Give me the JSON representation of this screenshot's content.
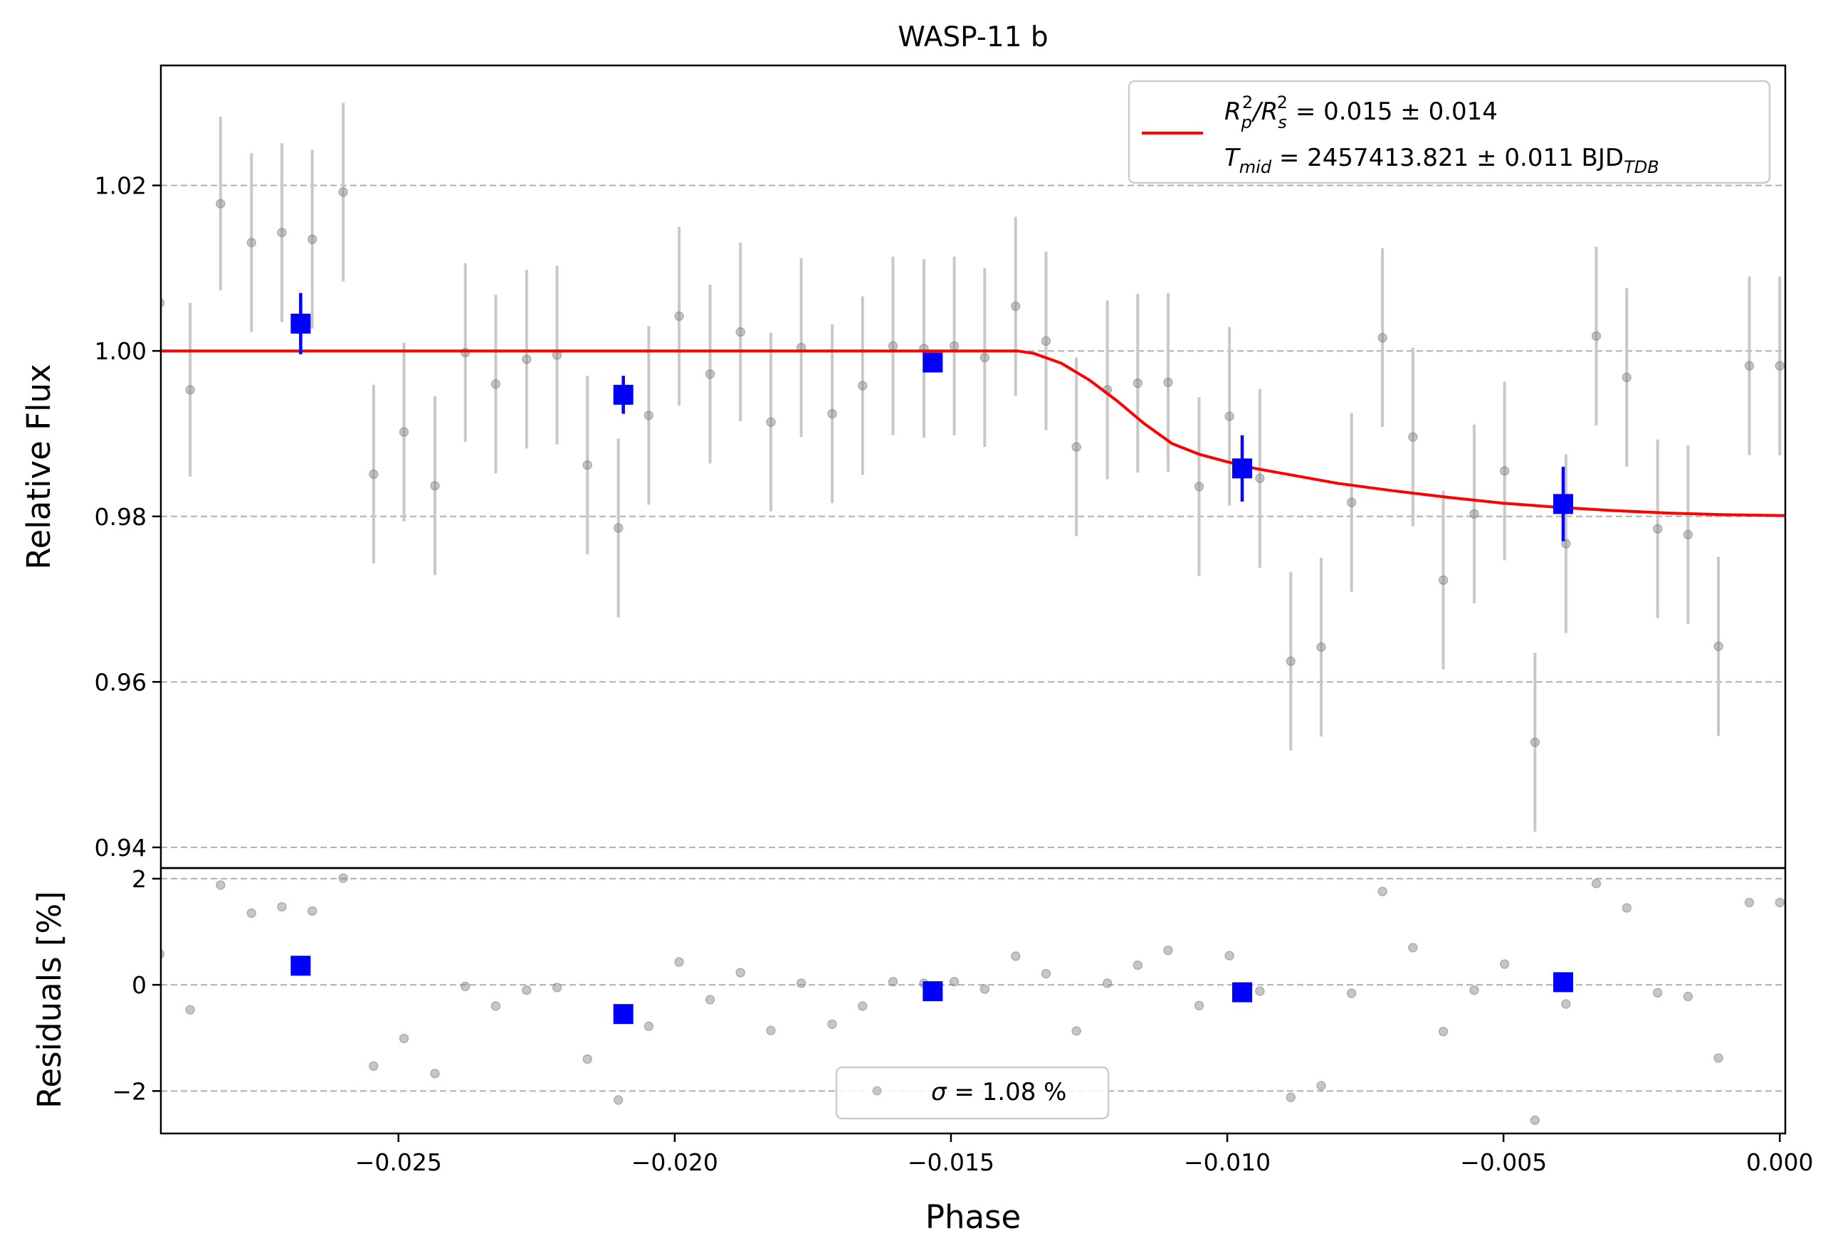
{
  "chart_data": {
    "type": "scatter",
    "title": "WASP-11 b",
    "xlabel": "Phase",
    "xlim": [
      -0.0293,
      0.0001
    ],
    "x_ticks": [
      {
        "value": -0.025,
        "label": "−0.025"
      },
      {
        "value": -0.02,
        "label": "−0.020"
      },
      {
        "value": -0.015,
        "label": "−0.015"
      },
      {
        "value": -0.01,
        "label": "−0.010"
      },
      {
        "value": -0.005,
        "label": "−0.005"
      },
      {
        "value": 0.0,
        "label": "0.000"
      }
    ],
    "top_panel": {
      "ylabel": "Relative Flux",
      "ylim": [
        0.9375,
        1.0345
      ],
      "grid": "horizontal-dashed",
      "y_ticks": [
        {
          "value": 0.94,
          "label": "0.94"
        },
        {
          "value": 0.96,
          "label": "0.96"
        },
        {
          "value": 0.98,
          "label": "0.98"
        },
        {
          "value": 1.0,
          "label": "1.00"
        },
        {
          "value": 1.02,
          "label": "1.02"
        }
      ],
      "legend": {
        "placement": "upper-right",
        "line_color": "#ff0000",
        "entries": [
          {
            "base": "R",
            "sub1": "p",
            "sup1": "2",
            "slash": "/",
            "base2": "R",
            "sub2": "s",
            "sup2": "2",
            "rest": " = 0.015 ± 0.014"
          },
          {
            "base": "T",
            "sub1": "mid",
            "rest": " = 2457413.821 ± 0.011 BJD",
            "sub_end": "TDB"
          }
        ]
      },
      "data_points": {
        "color": "#808080",
        "errorbar_color": "#c8c8c8",
        "x": [
          -0.02932,
          -0.02877,
          -0.02822,
          -0.02766,
          -0.02711,
          -0.02656,
          -0.026,
          -0.02545,
          -0.0249,
          -0.02434,
          -0.02379,
          -0.02324,
          -0.02268,
          -0.02213,
          -0.02158,
          -0.02102,
          -0.02047,
          -0.01992,
          -0.01936,
          -0.01881,
          -0.01826,
          -0.01771,
          -0.01715,
          -0.0166,
          -0.01605,
          -0.01549,
          -0.01494,
          -0.01439,
          -0.01383,
          -0.01328,
          -0.01273,
          -0.01217,
          -0.01162,
          -0.01107,
          -0.01051,
          -0.00996,
          -0.00941,
          -0.00885,
          -0.0083,
          -0.00775,
          -0.00719,
          -0.00664,
          -0.00609,
          -0.00553,
          -0.00498,
          -0.00443,
          -0.00387,
          -0.00332,
          -0.00277,
          -0.00221,
          -0.00166,
          -0.00111,
          -0.00055,
          0.0
        ],
        "y": [
          1.0058,
          0.9953,
          1.0178,
          1.0131,
          1.0143,
          1.0135,
          1.0192,
          0.9851,
          0.9902,
          0.9837,
          0.9998,
          0.996,
          0.999,
          0.9995,
          0.9862,
          0.9786,
          0.9922,
          1.0042,
          0.9972,
          1.0023,
          0.9914,
          1.0004,
          0.9924,
          0.9958,
          1.0006,
          1.0003,
          1.0006,
          0.9992,
          1.0054,
          1.0012,
          0.9884,
          0.9953,
          0.9961,
          0.9962,
          0.9836,
          0.9921,
          0.9846,
          0.9625,
          0.9642,
          0.9817,
          1.0016,
          0.9896,
          0.9723,
          0.9803,
          0.9855,
          0.9527,
          0.9767,
          1.0018,
          0.9968,
          0.9785,
          0.9778,
          0.9643,
          0.9982,
          0.9982
        ],
        "err": [
          0.0105,
          0.0105,
          0.0105,
          0.0108,
          0.0108,
          0.0108,
          0.0108,
          0.0108,
          0.0108,
          0.0108,
          0.0108,
          0.0108,
          0.0108,
          0.0108,
          0.0108,
          0.0108,
          0.0108,
          0.0108,
          0.0108,
          0.0108,
          0.0108,
          0.0108,
          0.0108,
          0.0108,
          0.0108,
          0.0108,
          0.0108,
          0.0108,
          0.0108,
          0.0108,
          0.0108,
          0.0108,
          0.0108,
          0.0108,
          0.0108,
          0.0108,
          0.0108,
          0.0108,
          0.0108,
          0.0108,
          0.0108,
          0.0108,
          0.0108,
          0.0108,
          0.0108,
          0.0108,
          0.0108,
          0.0108,
          0.0108,
          0.0108,
          0.0108,
          0.0108,
          0.0108,
          0.0108
        ]
      },
      "binned_points": {
        "color": "#0000ff",
        "x": [
          -0.02677,
          -0.02093,
          -0.01533,
          -0.00973,
          -0.00392
        ],
        "y": [
          1.0033,
          0.9947,
          0.9986,
          0.9858,
          0.9815
        ],
        "err": [
          0.0037,
          0.0023,
          0.0012,
          0.004,
          0.0045
        ]
      },
      "model": {
        "color": "#ff0000",
        "x": [
          -0.0293,
          -0.0138,
          -0.0135,
          -0.013,
          -0.0125,
          -0.012,
          -0.0115,
          -0.011,
          -0.0105,
          -0.01,
          -0.0095,
          -0.009,
          -0.008,
          -0.007,
          -0.006,
          -0.005,
          -0.004,
          -0.003,
          -0.002,
          -0.001,
          0.0001
        ],
        "y": [
          1.0,
          1.0,
          0.9997,
          0.9985,
          0.9965,
          0.994,
          0.9912,
          0.9888,
          0.9875,
          0.9866,
          0.9858,
          0.9852,
          0.984,
          0.9831,
          0.9823,
          0.9816,
          0.9811,
          0.9807,
          0.9804,
          0.9802,
          0.9801
        ]
      }
    },
    "bottom_panel": {
      "ylabel": "Residuals [%]",
      "ylim": [
        -2.8,
        2.2
      ],
      "grid": "horizontal-dashed",
      "y_ticks": [
        {
          "value": -2,
          "label": "−2"
        },
        {
          "value": 0,
          "label": "0"
        },
        {
          "value": 2,
          "label": "2"
        }
      ],
      "legend": {
        "placement": "lower-center",
        "symbol": "sigma",
        "text": " = 1.08 %"
      },
      "residual_points": {
        "color": "#808080",
        "x": [
          -0.02932,
          -0.02877,
          -0.02822,
          -0.02766,
          -0.02711,
          -0.02656,
          -0.026,
          -0.02545,
          -0.0249,
          -0.02434,
          -0.02379,
          -0.02324,
          -0.02268,
          -0.02213,
          -0.02158,
          -0.02102,
          -0.02047,
          -0.01992,
          -0.01936,
          -0.01881,
          -0.01826,
          -0.01771,
          -0.01715,
          -0.0166,
          -0.01605,
          -0.01549,
          -0.01494,
          -0.01439,
          -0.01383,
          -0.01328,
          -0.01273,
          -0.01217,
          -0.01162,
          -0.01107,
          -0.01051,
          -0.00996,
          -0.00941,
          -0.00885,
          -0.0083,
          -0.00775,
          -0.00719,
          -0.00664,
          -0.00609,
          -0.00553,
          -0.00498,
          -0.00443,
          -0.00387,
          -0.00332,
          -0.00277,
          -0.00221,
          -0.00166,
          -0.00111,
          -0.00055,
          0.0
        ],
        "y": [
          0.58,
          -0.47,
          1.88,
          1.35,
          1.47,
          1.39,
          2.01,
          -1.53,
          -1.01,
          -1.67,
          -0.03,
          -0.4,
          -0.1,
          -0.05,
          -1.4,
          -2.17,
          -0.78,
          0.43,
          -0.28,
          0.23,
          -0.86,
          0.03,
          -0.74,
          -0.4,
          0.06,
          0.03,
          0.06,
          -0.08,
          0.54,
          0.21,
          -0.87,
          0.03,
          0.37,
          0.65,
          -0.39,
          0.55,
          -0.12,
          -2.12,
          -1.9,
          -0.16,
          1.76,
          0.7,
          -0.88,
          -0.1,
          0.39,
          -2.55,
          -0.36,
          1.91,
          1.45,
          -0.15,
          -0.22,
          -1.38,
          1.55,
          1.55
        ]
      },
      "binned_residuals": {
        "color": "#0000ff",
        "x": [
          -0.02677,
          -0.02093,
          -0.01533,
          -0.00973,
          -0.00392
        ],
        "y": [
          0.36,
          -0.55,
          -0.12,
          -0.14,
          0.05
        ]
      }
    }
  }
}
